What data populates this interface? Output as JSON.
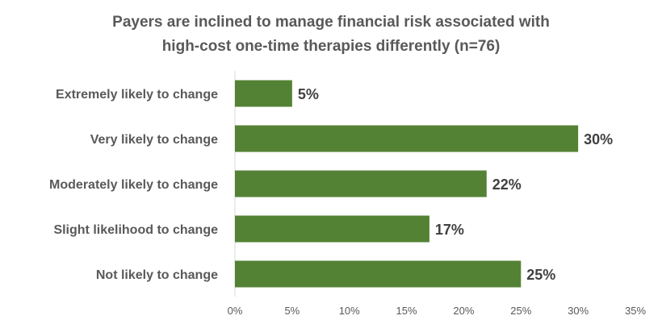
{
  "chart_data": {
    "type": "bar",
    "orientation": "horizontal",
    "title": "Payers are inclined to manage financial risk associated with high-cost one-time therapies differently (n=76)",
    "title_lines": [
      "Payers are inclined to manage financial risk associated with",
      "high-cost one-time therapies differently (n=76)"
    ],
    "categories": [
      "Extremely likely to change",
      "Very likely to change",
      "Moderately likely to change",
      "Slight likelihood to change",
      "Not likely to change"
    ],
    "values": [
      5,
      30,
      22,
      17,
      25
    ],
    "data_labels": [
      "5%",
      "30%",
      "22%",
      "17%",
      "25%"
    ],
    "xlim": [
      0,
      35
    ],
    "x_ticks": [
      0,
      5,
      10,
      15,
      20,
      25,
      30,
      35
    ],
    "x_tick_labels": [
      "0%",
      "5%",
      "10%",
      "15%",
      "20%",
      "25%",
      "30%",
      "35%"
    ],
    "xlabel": "",
    "ylabel": "",
    "grid": false,
    "legend": "none",
    "bar_color": "#548235"
  }
}
